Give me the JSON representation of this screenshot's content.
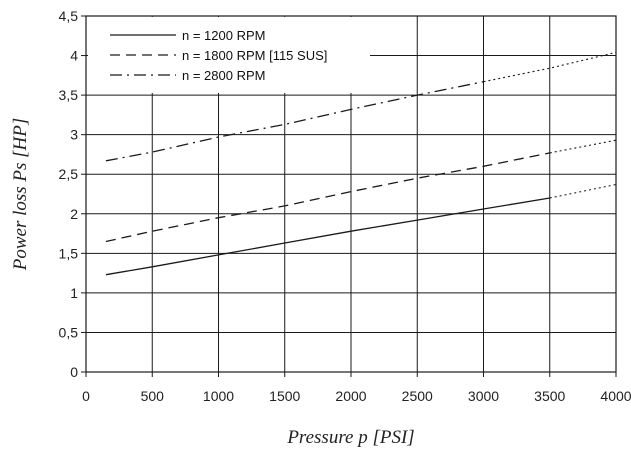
{
  "chart_data": {
    "type": "line",
    "xlabel": "Pressure p [PSI]",
    "ylabel": "Power loss Ps [HP]",
    "xlim": [
      0,
      4000
    ],
    "ylim": [
      0,
      4.5
    ],
    "x_ticks": [
      "0",
      "500",
      "1000",
      "1500",
      "2000",
      "2500",
      "3000",
      "3500",
      "4000"
    ],
    "y_ticks": [
      "0",
      "0,5",
      "1",
      "1,5",
      "2",
      "2,5",
      "3",
      "3,5",
      "4",
      "4,5"
    ],
    "x_tick_values": [
      0,
      500,
      1000,
      1500,
      2000,
      2500,
      3000,
      3500,
      4000
    ],
    "y_tick_values": [
      0,
      0.5,
      1,
      1.5,
      2,
      2.5,
      3,
      3.5,
      4,
      4.5
    ],
    "grid": true,
    "legend_position": "top-left",
    "series": [
      {
        "name": "n = 1200 RPM",
        "style": "solid",
        "points": [
          [
            150,
            1.23
          ],
          [
            500,
            1.33
          ],
          [
            1000,
            1.48
          ],
          [
            1500,
            1.63
          ],
          [
            2000,
            1.78
          ],
          [
            2500,
            1.92
          ],
          [
            3000,
            2.06
          ],
          [
            3500,
            2.2
          ]
        ],
        "extension": [
          [
            3500,
            2.2
          ],
          [
            4000,
            2.37
          ]
        ]
      },
      {
        "name": "n = 1800 RPM [115 SUS]",
        "style": "dashed",
        "points": [
          [
            150,
            1.65
          ],
          [
            500,
            1.78
          ],
          [
            1000,
            1.95
          ],
          [
            1500,
            2.1
          ],
          [
            2000,
            2.28
          ],
          [
            2500,
            2.45
          ],
          [
            3000,
            2.6
          ],
          [
            3500,
            2.77
          ]
        ],
        "extension": [
          [
            3500,
            2.77
          ],
          [
            4000,
            2.93
          ]
        ]
      },
      {
        "name": "n = 2800 RPM",
        "style": "dashdot",
        "points": [
          [
            150,
            2.67
          ],
          [
            500,
            2.78
          ],
          [
            1000,
            2.97
          ],
          [
            1500,
            3.13
          ],
          [
            2000,
            3.32
          ],
          [
            2500,
            3.5
          ],
          [
            3000,
            3.67
          ]
        ],
        "extension": [
          [
            3000,
            3.67
          ],
          [
            3500,
            3.84
          ],
          [
            4000,
            4.04
          ]
        ]
      }
    ]
  },
  "colors": {
    "line": "#1a1a1a",
    "background": "#ffffff"
  }
}
